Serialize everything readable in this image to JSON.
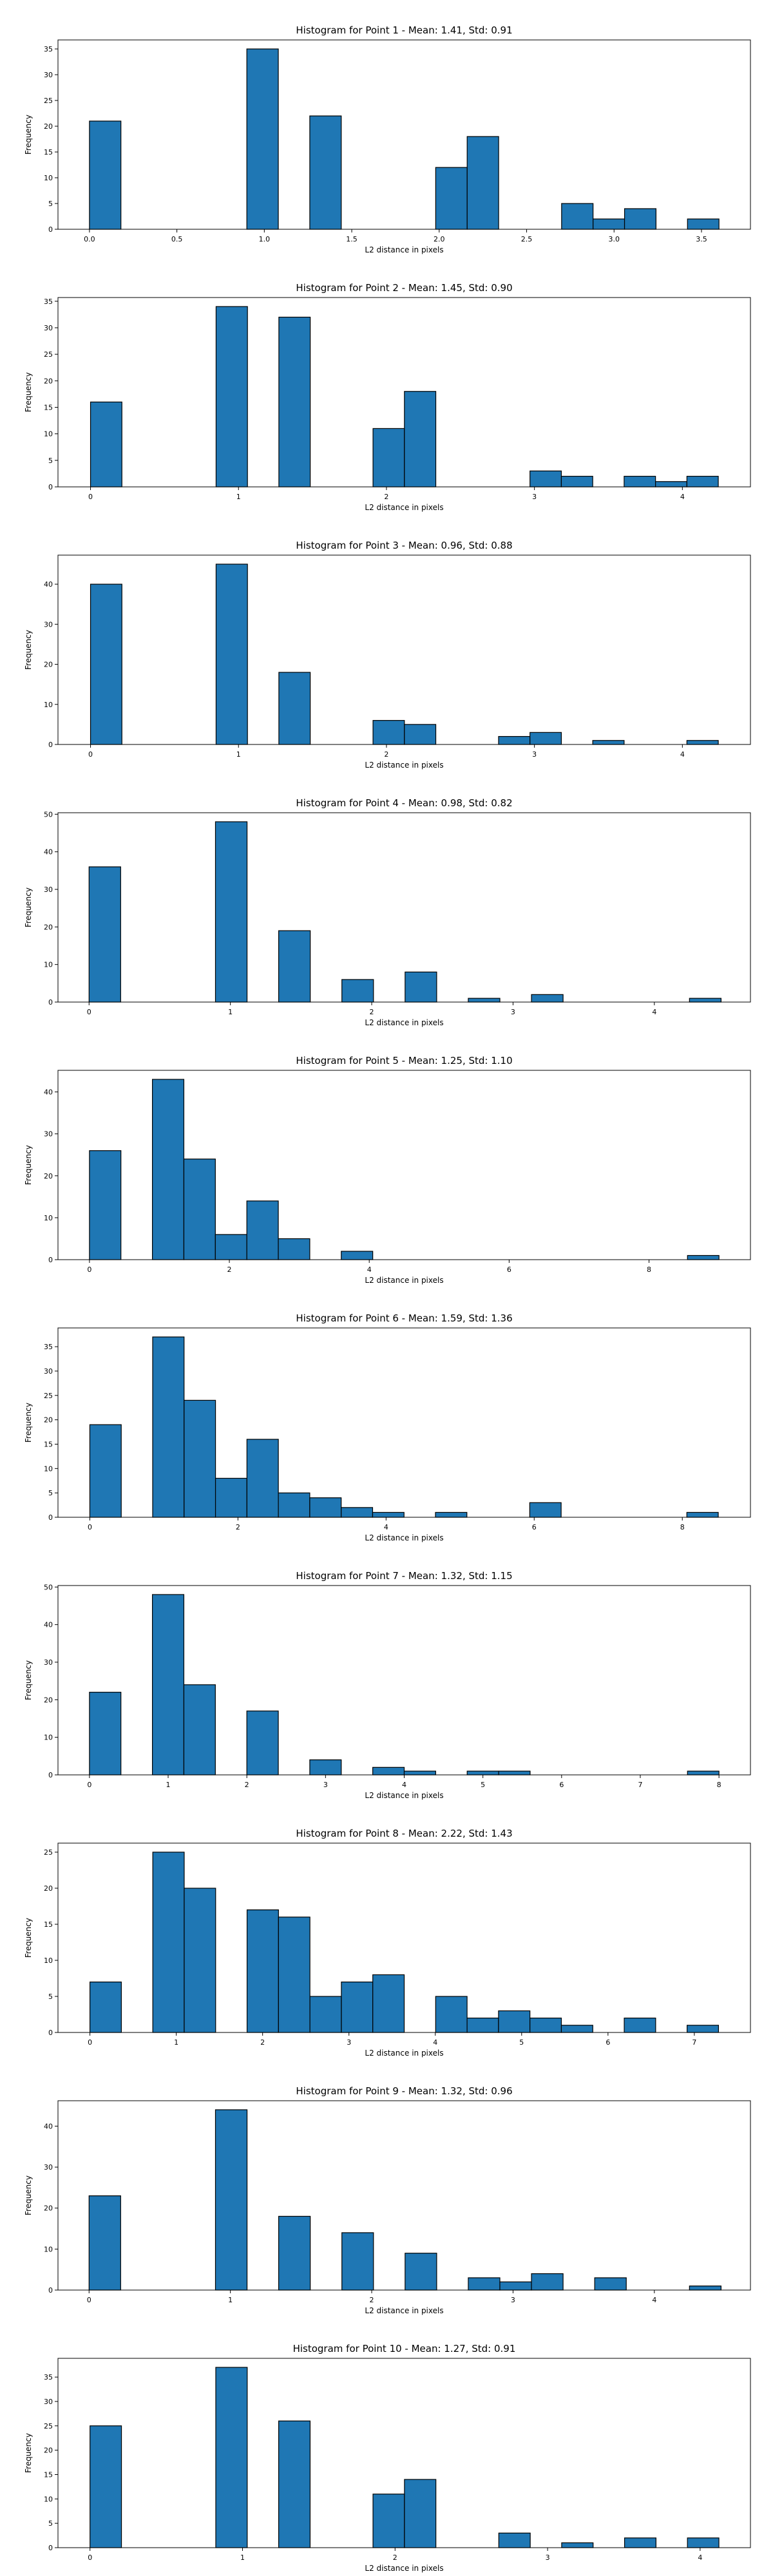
{
  "chart_data": [
    {
      "type": "bar",
      "title": "Histogram for Point 1 - Mean: 1.41, Std: 0.91",
      "xlabel": "L2 distance in pixels",
      "ylabel": "Frequency",
      "xlim": [
        -0.18,
        3.78
      ],
      "ylim": [
        0,
        36.75
      ],
      "xticks": [
        0.0,
        0.5,
        1.0,
        1.5,
        2.0,
        2.5,
        3.0,
        3.5
      ],
      "xtick_labels": [
        "0.0",
        "0.5",
        "1.0",
        "1.5",
        "2.0",
        "2.5",
        "3.0",
        "3.5"
      ],
      "yticks": [
        0,
        5,
        10,
        15,
        20,
        25,
        30,
        35
      ],
      "bin_edges": [
        0,
        0.18,
        0.36,
        0.54,
        0.72,
        0.9,
        1.08,
        1.26,
        1.44,
        1.62,
        1.8,
        1.98,
        2.16,
        2.34,
        2.52,
        2.7,
        2.88,
        3.06,
        3.24,
        3.42,
        3.6
      ],
      "values": [
        21,
        0,
        0,
        0,
        0,
        35,
        0,
        22,
        0,
        0,
        0,
        12,
        18,
        0,
        0,
        5,
        2,
        4,
        0,
        2
      ]
    },
    {
      "type": "bar",
      "title": "Histogram for Point 2 - Mean: 1.45, Std: 0.90",
      "xlabel": "L2 distance in pixels",
      "ylabel": "Frequency",
      "xlim": [
        -0.22,
        4.46
      ],
      "ylim": [
        0,
        35.7
      ],
      "xticks": [
        0,
        1,
        2,
        3,
        4
      ],
      "xtick_labels": [
        "0",
        "1",
        "2",
        "3",
        "4"
      ],
      "yticks": [
        0,
        5,
        10,
        15,
        20,
        25,
        30,
        35
      ],
      "bin_edges": [
        0,
        0.2121,
        0.4243,
        0.6364,
        0.8485,
        1.0607,
        1.2728,
        1.4849,
        1.6971,
        1.9092,
        2.1213,
        2.3335,
        2.5456,
        2.7577,
        2.9699,
        3.182,
        3.3941,
        3.6062,
        3.8184,
        4.0305,
        4.2426
      ],
      "values": [
        16,
        0,
        0,
        0,
        34,
        0,
        32,
        0,
        0,
        11,
        18,
        0,
        0,
        0,
        3,
        2,
        0,
        2,
        1,
        2
      ]
    },
    {
      "type": "bar",
      "title": "Histogram for Point 3 - Mean: 0.96, Std: 0.88",
      "xlabel": "L2 distance in pixels",
      "ylabel": "Frequency",
      "xlim": [
        -0.22,
        4.46
      ],
      "ylim": [
        0,
        47.25
      ],
      "xticks": [
        0,
        1,
        2,
        3,
        4
      ],
      "xtick_labels": [
        "0",
        "1",
        "2",
        "3",
        "4"
      ],
      "yticks": [
        0,
        10,
        20,
        30,
        40
      ],
      "bin_edges": [
        0,
        0.2121,
        0.4243,
        0.6364,
        0.8485,
        1.0607,
        1.2728,
        1.4849,
        1.6971,
        1.9092,
        2.1213,
        2.3335,
        2.5456,
        2.7577,
        2.9699,
        3.182,
        3.3941,
        3.6062,
        3.8184,
        4.0305,
        4.2426
      ],
      "values": [
        40,
        0,
        0,
        0,
        45,
        0,
        18,
        0,
        0,
        6,
        5,
        0,
        0,
        2,
        3,
        0,
        1,
        0,
        0,
        1
      ]
    },
    {
      "type": "bar",
      "title": "Histogram for Point 4 - Mean: 0.98, Std: 0.82",
      "xlabel": "L2 distance in pixels",
      "ylabel": "Frequency",
      "xlim": [
        -0.22,
        4.68
      ],
      "ylim": [
        0,
        50.4
      ],
      "xticks": [
        0,
        1,
        2,
        3,
        4
      ],
      "xtick_labels": [
        "0",
        "1",
        "2",
        "3",
        "4"
      ],
      "yticks": [
        0,
        10,
        20,
        30,
        40,
        50
      ],
      "bin_edges": [
        0,
        0.2236,
        0.4472,
        0.6708,
        0.8944,
        1.118,
        1.3416,
        1.5652,
        1.7889,
        2.0125,
        2.2361,
        2.4597,
        2.6833,
        2.9069,
        3.1305,
        3.3541,
        3.5777,
        3.8013,
        4.0249,
        4.2485,
        4.4721
      ],
      "values": [
        36,
        0,
        0,
        0,
        48,
        0,
        19,
        0,
        6,
        0,
        8,
        0,
        1,
        0,
        2,
        0,
        0,
        0,
        0,
        1
      ]
    },
    {
      "type": "bar",
      "title": "Histogram for Point 5 - Mean: 1.25, Std: 1.10",
      "xlabel": "L2 distance in pixels",
      "ylabel": "Frequency",
      "xlim": [
        -0.45,
        9.45
      ],
      "ylim": [
        0,
        45.15
      ],
      "xticks": [
        0,
        2,
        4,
        6,
        8
      ],
      "xtick_labels": [
        "0",
        "2",
        "4",
        "6",
        "8"
      ],
      "yticks": [
        0,
        10,
        20,
        30,
        40
      ],
      "bin_edges": [
        0,
        0.45,
        0.9,
        1.35,
        1.8,
        2.25,
        2.7,
        3.15,
        3.6,
        4.05,
        4.5,
        4.95,
        5.4,
        5.85,
        6.3,
        6.75,
        7.2,
        7.65,
        8.1,
        8.55,
        9.0
      ],
      "values": [
        26,
        0,
        43,
        24,
        6,
        14,
        5,
        0,
        2,
        0,
        0,
        0,
        0,
        0,
        0,
        0,
        0,
        0,
        0,
        1
      ]
    },
    {
      "type": "bar",
      "title": "Histogram for Point 6 - Mean: 1.59, Std: 1.36",
      "xlabel": "L2 distance in pixels",
      "ylabel": "Frequency",
      "xlim": [
        -0.43,
        8.92
      ],
      "ylim": [
        0,
        38.85
      ],
      "xticks": [
        0,
        2,
        4,
        6,
        8
      ],
      "xtick_labels": [
        "0",
        "2",
        "4",
        "6",
        "8"
      ],
      "yticks": [
        0,
        5,
        10,
        15,
        20,
        25,
        30,
        35
      ],
      "bin_edges": [
        0,
        0.4243,
        0.8485,
        1.2728,
        1.6971,
        2.1213,
        2.5456,
        2.9698,
        3.3941,
        3.8184,
        4.2426,
        4.6669,
        5.0912,
        5.5154,
        5.9397,
        6.364,
        6.7882,
        7.2125,
        7.6368,
        8.061,
        8.4853
      ],
      "values": [
        19,
        0,
        37,
        24,
        8,
        16,
        5,
        4,
        2,
        1,
        0,
        1,
        0,
        0,
        3,
        0,
        0,
        0,
        0,
        1
      ]
    },
    {
      "type": "bar",
      "title": "Histogram for Point 7 - Mean: 1.32, Std: 1.15",
      "xlabel": "L2 distance in pixels",
      "ylabel": "Frequency",
      "xlim": [
        -0.4,
        8.4
      ],
      "ylim": [
        0,
        50.4
      ],
      "xticks": [
        0,
        1,
        2,
        3,
        4,
        5,
        6,
        7,
        8
      ],
      "xtick_labels": [
        "0",
        "1",
        "2",
        "3",
        "4",
        "5",
        "6",
        "7",
        "8"
      ],
      "yticks": [
        0,
        10,
        20,
        30,
        40,
        50
      ],
      "bin_edges": [
        0,
        0.4,
        0.8,
        1.2,
        1.6,
        2.0,
        2.4,
        2.8,
        3.2,
        3.6,
        4.0,
        4.4,
        4.8,
        5.2,
        5.6,
        6.0,
        6.4,
        6.8,
        7.2,
        7.6,
        8.0
      ],
      "values": [
        22,
        0,
        48,
        24,
        0,
        17,
        0,
        4,
        0,
        2,
        1,
        0,
        1,
        1,
        0,
        0,
        0,
        0,
        0,
        1
      ]
    },
    {
      "type": "bar",
      "title": "Histogram for Point 8 - Mean: 2.22, Std: 1.43",
      "xlabel": "L2 distance in pixels",
      "ylabel": "Frequency",
      "xlim": [
        -0.37,
        7.65
      ],
      "ylim": [
        0,
        26.25
      ],
      "xticks": [
        0,
        1,
        2,
        3,
        4,
        5,
        6,
        7
      ],
      "xtick_labels": [
        "0",
        "1",
        "2",
        "3",
        "4",
        "5",
        "6",
        "7"
      ],
      "yticks": [
        0,
        5,
        10,
        15,
        20,
        25
      ],
      "bin_edges": [
        0,
        0.364,
        0.728,
        1.092,
        1.456,
        1.82,
        2.184,
        2.548,
        2.912,
        3.276,
        3.6401,
        4.0041,
        4.3681,
        4.7321,
        5.0961,
        5.4601,
        5.8241,
        6.1881,
        6.5521,
        6.9161,
        7.2801
      ],
      "values": [
        7,
        0,
        25,
        20,
        0,
        17,
        16,
        5,
        7,
        8,
        0,
        5,
        2,
        3,
        2,
        1,
        0,
        2,
        0,
        1
      ]
    },
    {
      "type": "bar",
      "title": "Histogram for Point 9 - Mean: 1.32, Std: 0.96",
      "xlabel": "L2 distance in pixels",
      "ylabel": "Frequency",
      "xlim": [
        -0.22,
        4.68
      ],
      "ylim": [
        0,
        46.2
      ],
      "xticks": [
        0,
        1,
        2,
        3,
        4
      ],
      "xtick_labels": [
        "0",
        "1",
        "2",
        "3",
        "4"
      ],
      "yticks": [
        0,
        10,
        20,
        30,
        40
      ],
      "bin_edges": [
        0,
        0.2236,
        0.4472,
        0.6708,
        0.8944,
        1.118,
        1.3416,
        1.5652,
        1.7889,
        2.0125,
        2.2361,
        2.4597,
        2.6833,
        2.9069,
        3.1305,
        3.3541,
        3.5777,
        3.8013,
        4.0249,
        4.2485,
        4.4721
      ],
      "values": [
        23,
        0,
        0,
        0,
        44,
        0,
        18,
        0,
        14,
        0,
        9,
        0,
        3,
        2,
        4,
        0,
        3,
        0,
        0,
        1
      ]
    },
    {
      "type": "bar",
      "title": "Histogram for Point 10 - Mean: 1.27, Std: 0.91",
      "xlabel": "L2 distance in pixels",
      "ylabel": "Frequency",
      "xlim": [
        -0.21,
        4.33
      ],
      "ylim": [
        0,
        38.85
      ],
      "xticks": [
        0,
        1,
        2,
        3,
        4
      ],
      "xtick_labels": [
        "0",
        "1",
        "2",
        "3",
        "4"
      ],
      "yticks": [
        0,
        5,
        10,
        15,
        20,
        25,
        30,
        35
      ],
      "bin_edges": [
        0,
        0.2062,
        0.4123,
        0.6185,
        0.8246,
        1.0308,
        1.2369,
        1.4431,
        1.6492,
        1.8554,
        2.0616,
        2.2677,
        2.4739,
        2.68,
        2.8862,
        3.0923,
        3.2985,
        3.5046,
        3.7108,
        3.9169,
        4.1231
      ],
      "values": [
        25,
        0,
        0,
        0,
        37,
        0,
        26,
        0,
        0,
        11,
        14,
        0,
        0,
        3,
        0,
        1,
        0,
        2,
        0,
        2
      ]
    }
  ]
}
